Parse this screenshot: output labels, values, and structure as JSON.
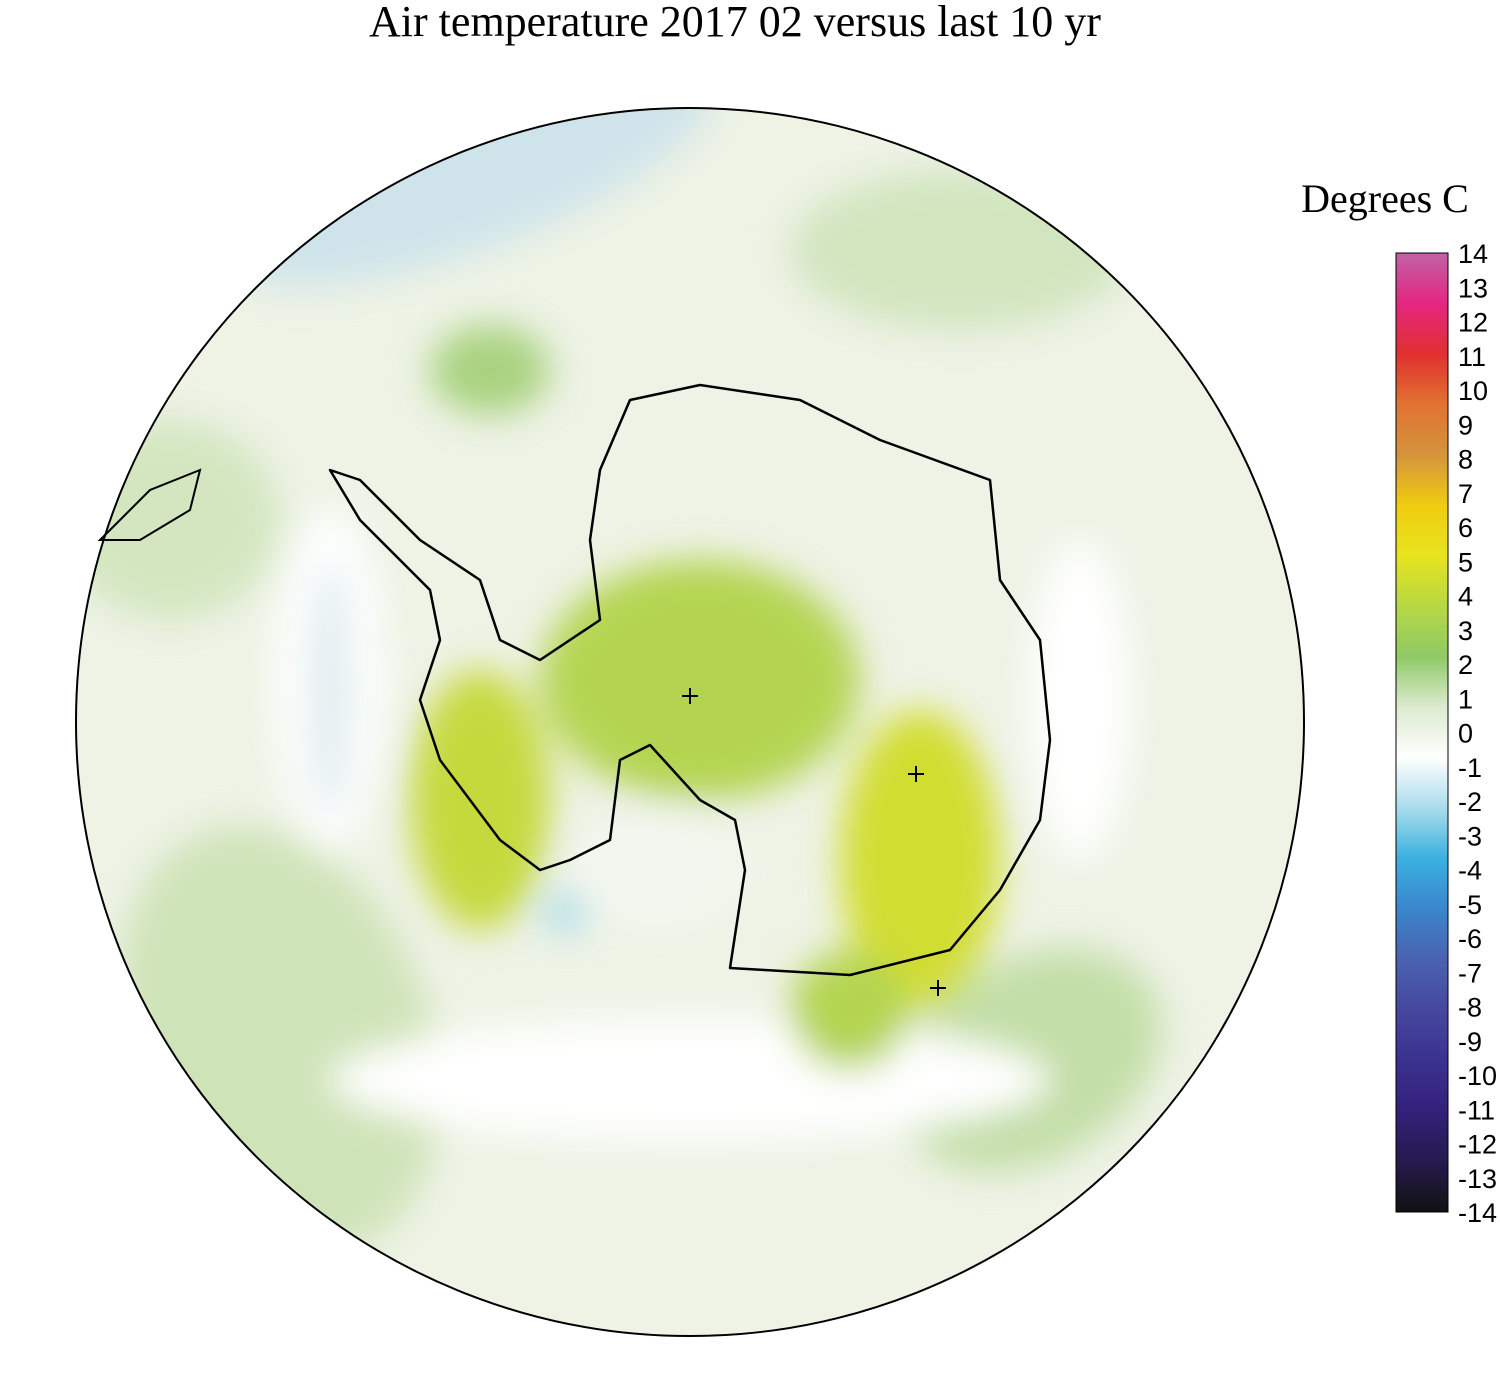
{
  "title": "Air temperature 2017 02 versus last 10 yr",
  "colorbar": {
    "label": "Degrees C",
    "lim": [
      -14,
      14
    ],
    "ticks": [
      14,
      13,
      12,
      11,
      10,
      9,
      8,
      7,
      6,
      5,
      4,
      3,
      2,
      1,
      0,
      -1,
      -2,
      -3,
      -4,
      -5,
      -6,
      -7,
      -8,
      -9,
      -10,
      -11,
      -12,
      -13,
      -14
    ],
    "colors": [
      "#111111",
      "#251a4e",
      "#33217a",
      "#3b3190",
      "#46479e",
      "#4a62b0",
      "#3b86cc",
      "#3ab0e0",
      "#a9dceb",
      "#ffffff",
      "#dcebd0",
      "#8fca66",
      "#b6d843",
      "#e8e41e",
      "#f0cc10",
      "#d4943c",
      "#e27232",
      "#e03030",
      "#e42680",
      "#c262a6"
    ]
  }
}
